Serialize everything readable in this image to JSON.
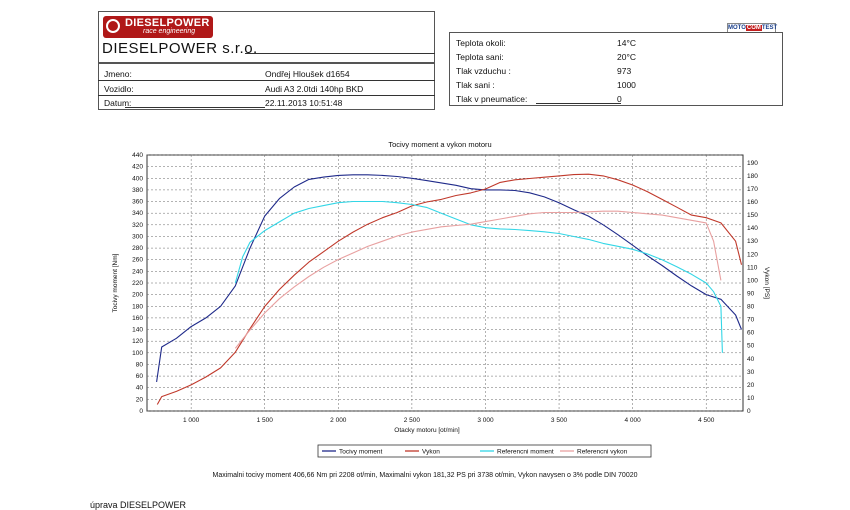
{
  "header": {
    "logo_text": "DIESELPOWER",
    "logo_subtext": "race engineering",
    "company": "DIESELPOWER s.r.o.",
    "fields": [
      {
        "label": "Jmeno:",
        "value": "Ondřej Hloušek d1654"
      },
      {
        "label": "Vozidlo:",
        "value": "Audi A3 2.0tdi 140hp BKD"
      },
      {
        "label": "Datum:",
        "value": "22.11.2013 10:51:48"
      }
    ]
  },
  "conditions": {
    "badge": {
      "left": "MOTO",
      "mid": "COM",
      "right": "TEST"
    },
    "fields": [
      {
        "label": "Teplota okoli:",
        "value": "14°C"
      },
      {
        "label": "Teplota sani:",
        "value": "20°C"
      },
      {
        "label": "Tlak vzduchu :",
        "value": "973"
      },
      {
        "label": "Tlak sani :",
        "value": "1000"
      },
      {
        "label": "Tlak v pneumatice:",
        "value": "0"
      }
    ]
  },
  "colors": {
    "torque": "#1f2a8a",
    "power": "#c0392b",
    "ref_torque": "#33d6e6",
    "ref_power": "#e8a0a0"
  },
  "chart_data": {
    "type": "line",
    "title": "Tocivy moment a vykon motoru",
    "xlabel": "Otacky motoru [ot/min]",
    "ylabel": "Tocivy moment [Nm]",
    "y2label": "Vykon [PS]",
    "xlim": [
      700,
      4750
    ],
    "ylim": [
      0,
      440
    ],
    "y2lim": [
      0,
      196
    ],
    "xticks": [
      1000,
      1500,
      2000,
      2500,
      3000,
      3500,
      4000,
      4500
    ],
    "xtick_labels": [
      "1 000",
      "1 500",
      "2 000",
      "2 500",
      "3 000",
      "3 500",
      "4 000",
      "4 500"
    ],
    "yticks": [
      0,
      20,
      40,
      60,
      80,
      100,
      120,
      140,
      160,
      180,
      200,
      220,
      240,
      260,
      280,
      300,
      320,
      340,
      360,
      380,
      400,
      420,
      440
    ],
    "y2ticks": [
      0,
      10,
      20,
      30,
      40,
      50,
      60,
      70,
      80,
      90,
      100,
      110,
      120,
      130,
      140,
      150,
      160,
      170,
      180,
      190
    ],
    "grid": true,
    "series": [
      {
        "name": "Tocivy moment",
        "axis": "left",
        "x": [
          765,
          800,
          900,
          1000,
          1100,
          1200,
          1300,
          1400,
          1500,
          1600,
          1700,
          1800,
          1900,
          2000,
          2100,
          2200,
          2300,
          2400,
          2500,
          2600,
          2700,
          2800,
          2900,
          3000,
          3100,
          3200,
          3300,
          3400,
          3500,
          3600,
          3700,
          3800,
          3900,
          4000,
          4100,
          4200,
          4300,
          4400,
          4500,
          4600,
          4700,
          4740
        ],
        "values": [
          50,
          110,
          125,
          145,
          160,
          180,
          215,
          280,
          335,
          365,
          385,
          398,
          402,
          405,
          406,
          406,
          405,
          403,
          400,
          396,
          392,
          388,
          382,
          380,
          380,
          379,
          375,
          368,
          358,
          346,
          335,
          320,
          303,
          285,
          267,
          250,
          232,
          215,
          200,
          192,
          165,
          140
        ]
      },
      {
        "name": "Vykon",
        "axis": "right",
        "x": [
          770,
          800,
          900,
          1000,
          1100,
          1200,
          1300,
          1400,
          1500,
          1600,
          1700,
          1800,
          1900,
          2000,
          2100,
          2200,
          2300,
          2400,
          2500,
          2600,
          2700,
          2800,
          2900,
          3000,
          3100,
          3200,
          3300,
          3400,
          3500,
          3600,
          3700,
          3800,
          3900,
          4000,
          4100,
          4200,
          4300,
          4400,
          4500,
          4600,
          4700,
          4740
        ],
        "values": [
          5,
          11,
          15,
          20,
          26,
          33,
          45,
          63,
          80,
          93,
          104,
          114,
          122,
          130,
          137,
          143,
          148,
          152,
          157,
          160,
          162,
          165,
          167,
          170,
          175,
          177,
          178,
          179,
          180,
          181,
          181.3,
          180,
          177,
          173,
          168,
          162,
          156,
          150,
          148,
          144,
          130,
          112
        ]
      },
      {
        "name": "Referencni moment",
        "axis": "left",
        "x": [
          1300,
          1350,
          1400,
          1500,
          1600,
          1700,
          1800,
          1900,
          2000,
          2100,
          2200,
          2300,
          2400,
          2500,
          2600,
          2700,
          2800,
          2900,
          3000,
          3100,
          3200,
          3300,
          3400,
          3500,
          3600,
          3700,
          3800,
          3900,
          4000,
          4100,
          4200,
          4300,
          4400,
          4500,
          4550,
          4600,
          4610
        ],
        "values": [
          220,
          265,
          290,
          310,
          325,
          340,
          348,
          353,
          358,
          360,
          360,
          360,
          358,
          355,
          350,
          340,
          330,
          320,
          315,
          313,
          312,
          310,
          308,
          305,
          300,
          295,
          288,
          283,
          278,
          270,
          260,
          248,
          235,
          220,
          205,
          180,
          100
        ]
      },
      {
        "name": "Referencni vykon",
        "axis": "right",
        "x": [
          1300,
          1400,
          1500,
          1600,
          1700,
          1800,
          1900,
          2000,
          2100,
          2200,
          2300,
          2400,
          2500,
          2600,
          2700,
          2800,
          2900,
          3000,
          3100,
          3200,
          3300,
          3400,
          3500,
          3600,
          3700,
          3800,
          3900,
          4000,
          4100,
          4200,
          4300,
          4400,
          4500,
          4550,
          4600
        ],
        "values": [
          48,
          62,
          75,
          86,
          95,
          103,
          110,
          116,
          121,
          126,
          130,
          134,
          137,
          139,
          141,
          142,
          143,
          145,
          147,
          149,
          151,
          152,
          152,
          152,
          152.5,
          153,
          153,
          152,
          151,
          150,
          148,
          146,
          144,
          130,
          100
        ]
      }
    ],
    "legend": [
      "Tocivy moment",
      "Vykon",
      "Referencni moment",
      "Referencni vykon"
    ],
    "legend_position": "bottom"
  },
  "footer": {
    "summary": "Maximalni tocivy moment 406,66 Nm pri 2208 ot/min,  Maximalni vykon 181,32 PS pri 3738 ot/min,  Vykon navysen o 3% podle DIN 70020",
    "signature": "úprava DIESELPOWER"
  }
}
